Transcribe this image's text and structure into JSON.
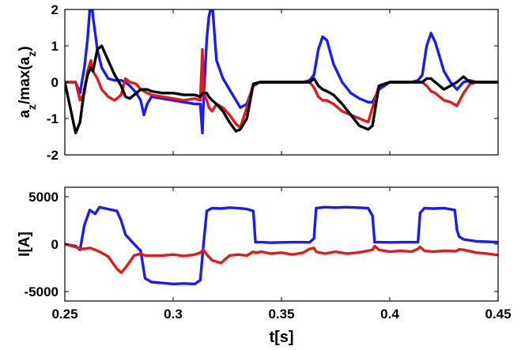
{
  "chart_data": [
    {
      "type": "line",
      "ylabel": "a_z/max(a_z)",
      "xlim": [
        0.25,
        0.45
      ],
      "ylim": [
        -2,
        2
      ],
      "yticks": [
        "2",
        "1",
        "0",
        "-1",
        "-2"
      ],
      "yticks_values": [
        2,
        1,
        0,
        -1,
        -2
      ],
      "x": [
        0.25,
        0.255,
        0.257,
        0.259,
        0.2605,
        0.262,
        0.263,
        0.265,
        0.267,
        0.27,
        0.273,
        0.276,
        0.278,
        0.28,
        0.283,
        0.285,
        0.2865,
        0.288,
        0.29,
        0.295,
        0.3,
        0.305,
        0.31,
        0.3125,
        0.3135,
        0.314,
        0.3155,
        0.3165,
        0.318,
        0.32,
        0.323,
        0.326,
        0.329,
        0.331,
        0.334,
        0.337,
        0.34,
        0.345,
        0.35,
        0.355,
        0.36,
        0.363,
        0.365,
        0.367,
        0.369,
        0.371,
        0.374,
        0.378,
        0.382,
        0.386,
        0.39,
        0.392,
        0.395,
        0.4,
        0.405,
        0.41,
        0.413,
        0.415,
        0.417,
        0.419,
        0.421,
        0.423,
        0.425,
        0.428,
        0.431,
        0.434,
        0.437,
        0.44,
        0.445,
        0.45
      ],
      "series": [
        {
          "color": "#1a1aff",
          "values": [
            0,
            0,
            -0.3,
            0.4,
            1.2,
            2.4,
            1.8,
            0.9,
            0.4,
            0.1,
            0.05,
            0.05,
            0.0,
            -0.1,
            -0.3,
            -0.5,
            -0.9,
            -0.6,
            -0.4,
            -0.45,
            -0.5,
            -0.55,
            -0.6,
            -0.6,
            -1.4,
            -0.5,
            1.2,
            1.8,
            2.2,
            0.6,
            0.1,
            -0.2,
            -0.5,
            -0.7,
            -0.6,
            -0.1,
            0,
            0,
            0,
            0,
            0,
            0.05,
            0.2,
            0.9,
            1.25,
            1.15,
            0.5,
            0.0,
            -0.3,
            -0.45,
            -0.55,
            -0.55,
            -0.2,
            0,
            0,
            0,
            0.05,
            0.2,
            1.0,
            1.35,
            1.1,
            0.7,
            0.3,
            0.0,
            -0.2,
            0.0,
            0.05,
            0,
            0,
            0
          ]
        },
        {
          "color": "#e41a1a",
          "values": [
            0,
            0,
            -0.5,
            -0.3,
            0.3,
            0.6,
            0.3,
            0.1,
            -0.2,
            -0.4,
            -0.5,
            -0.35,
            0.1,
            0.0,
            -0.05,
            -0.2,
            -0.25,
            -0.3,
            -0.35,
            -0.4,
            -0.45,
            -0.5,
            -0.45,
            -0.5,
            0.9,
            -0.3,
            -0.5,
            -0.7,
            -0.8,
            -0.6,
            -0.7,
            -0.9,
            -1.15,
            -1.25,
            -0.7,
            -0.05,
            0,
            0,
            0,
            0,
            0,
            0,
            -0.15,
            -0.4,
            -0.5,
            -0.5,
            -0.6,
            -0.8,
            -0.9,
            -1.0,
            -1.1,
            -0.7,
            -0.1,
            0,
            0,
            0,
            0,
            0,
            -0.1,
            -0.25,
            -0.3,
            -0.4,
            -0.5,
            -0.55,
            -0.65,
            -0.3,
            -0.05,
            0,
            0,
            0
          ]
        },
        {
          "color": "#000000",
          "values": [
            0,
            -1.4,
            -1.1,
            -0.2,
            0.2,
            0.4,
            0.3,
            0.9,
            1.0,
            0.6,
            0.2,
            -0.1,
            -0.4,
            -0.45,
            -0.3,
            -0.2,
            -0.2,
            -0.2,
            -0.25,
            -0.3,
            -0.3,
            -0.35,
            -0.35,
            -0.4,
            -0.3,
            -0.3,
            -0.3,
            -0.4,
            -0.5,
            -0.6,
            -0.8,
            -1.1,
            -1.35,
            -1.3,
            -1.0,
            -0.05,
            0,
            0,
            0,
            0,
            0,
            0,
            0.1,
            -0.1,
            -0.2,
            -0.25,
            -0.35,
            -0.6,
            -0.9,
            -1.2,
            -1.3,
            -1.2,
            -0.1,
            0,
            0,
            0,
            0,
            0,
            0.1,
            0.1,
            0.0,
            -0.1,
            -0.2,
            -0.1,
            0.0,
            0.15,
            0.0,
            0,
            0,
            0
          ]
        }
      ]
    },
    {
      "type": "line",
      "xlabel": "t[s]",
      "ylabel": "I[A]",
      "xlim": [
        0.25,
        0.45
      ],
      "ylim": [
        -6000,
        6000
      ],
      "xticks": [
        "0.25",
        "0.3",
        "0.35",
        "0.4",
        "0.45"
      ],
      "xticks_values": [
        0.25,
        0.3,
        0.35,
        0.4,
        0.45
      ],
      "yticks": [
        "5000",
        "0",
        "-5000"
      ],
      "yticks_values": [
        5000,
        0,
        -5000
      ],
      "x": [
        0.25,
        0.255,
        0.257,
        0.259,
        0.2615,
        0.264,
        0.266,
        0.27,
        0.274,
        0.276,
        0.278,
        0.282,
        0.285,
        0.287,
        0.29,
        0.295,
        0.3,
        0.305,
        0.31,
        0.3125,
        0.314,
        0.3155,
        0.318,
        0.322,
        0.326,
        0.33,
        0.334,
        0.337,
        0.338,
        0.341,
        0.345,
        0.35,
        0.355,
        0.36,
        0.363,
        0.365,
        0.366,
        0.37,
        0.375,
        0.38,
        0.385,
        0.39,
        0.392,
        0.393,
        0.395,
        0.4,
        0.405,
        0.41,
        0.413,
        0.414,
        0.416,
        0.42,
        0.425,
        0.43,
        0.431,
        0.432,
        0.434,
        0.44,
        0.445,
        0.45
      ],
      "series": [
        {
          "color": "#1a1aff",
          "values": [
            0,
            -200,
            -600,
            2000,
            3600,
            3200,
            3900,
            3700,
            3500,
            2500,
            1000,
            0,
            -700,
            -3600,
            -4000,
            -4100,
            -4200,
            -4150,
            -4200,
            -3800,
            0,
            3500,
            3800,
            3750,
            3850,
            3800,
            3700,
            3500,
            200,
            200,
            150,
            180,
            200,
            200,
            180,
            600,
            3800,
            3900,
            3850,
            3900,
            3850,
            3800,
            3000,
            200,
            200,
            180,
            200,
            200,
            200,
            3300,
            3800,
            3750,
            3800,
            3600,
            1500,
            800,
            500,
            300,
            250,
            200
          ]
        },
        {
          "color": "#e41a1a",
          "values": [
            0,
            -300,
            -500,
            -500,
            -400,
            -600,
            -800,
            -1300,
            -2600,
            -3000,
            -2500,
            -1200,
            -1000,
            -1200,
            -1200,
            -1200,
            -1100,
            -1250,
            -1100,
            -900,
            -600,
            -1100,
            -1700,
            -2000,
            -1200,
            -1100,
            -1200,
            -800,
            -900,
            -800,
            -1000,
            -900,
            -1100,
            -900,
            -500,
            -400,
            -800,
            -1000,
            -800,
            -1000,
            -900,
            -700,
            -600,
            -200,
            -600,
            -800,
            -700,
            -800,
            -500,
            -300,
            -700,
            -800,
            -700,
            -750,
            -700,
            -550,
            -600,
            -900,
            -1000,
            -1150
          ]
        }
      ]
    }
  ]
}
